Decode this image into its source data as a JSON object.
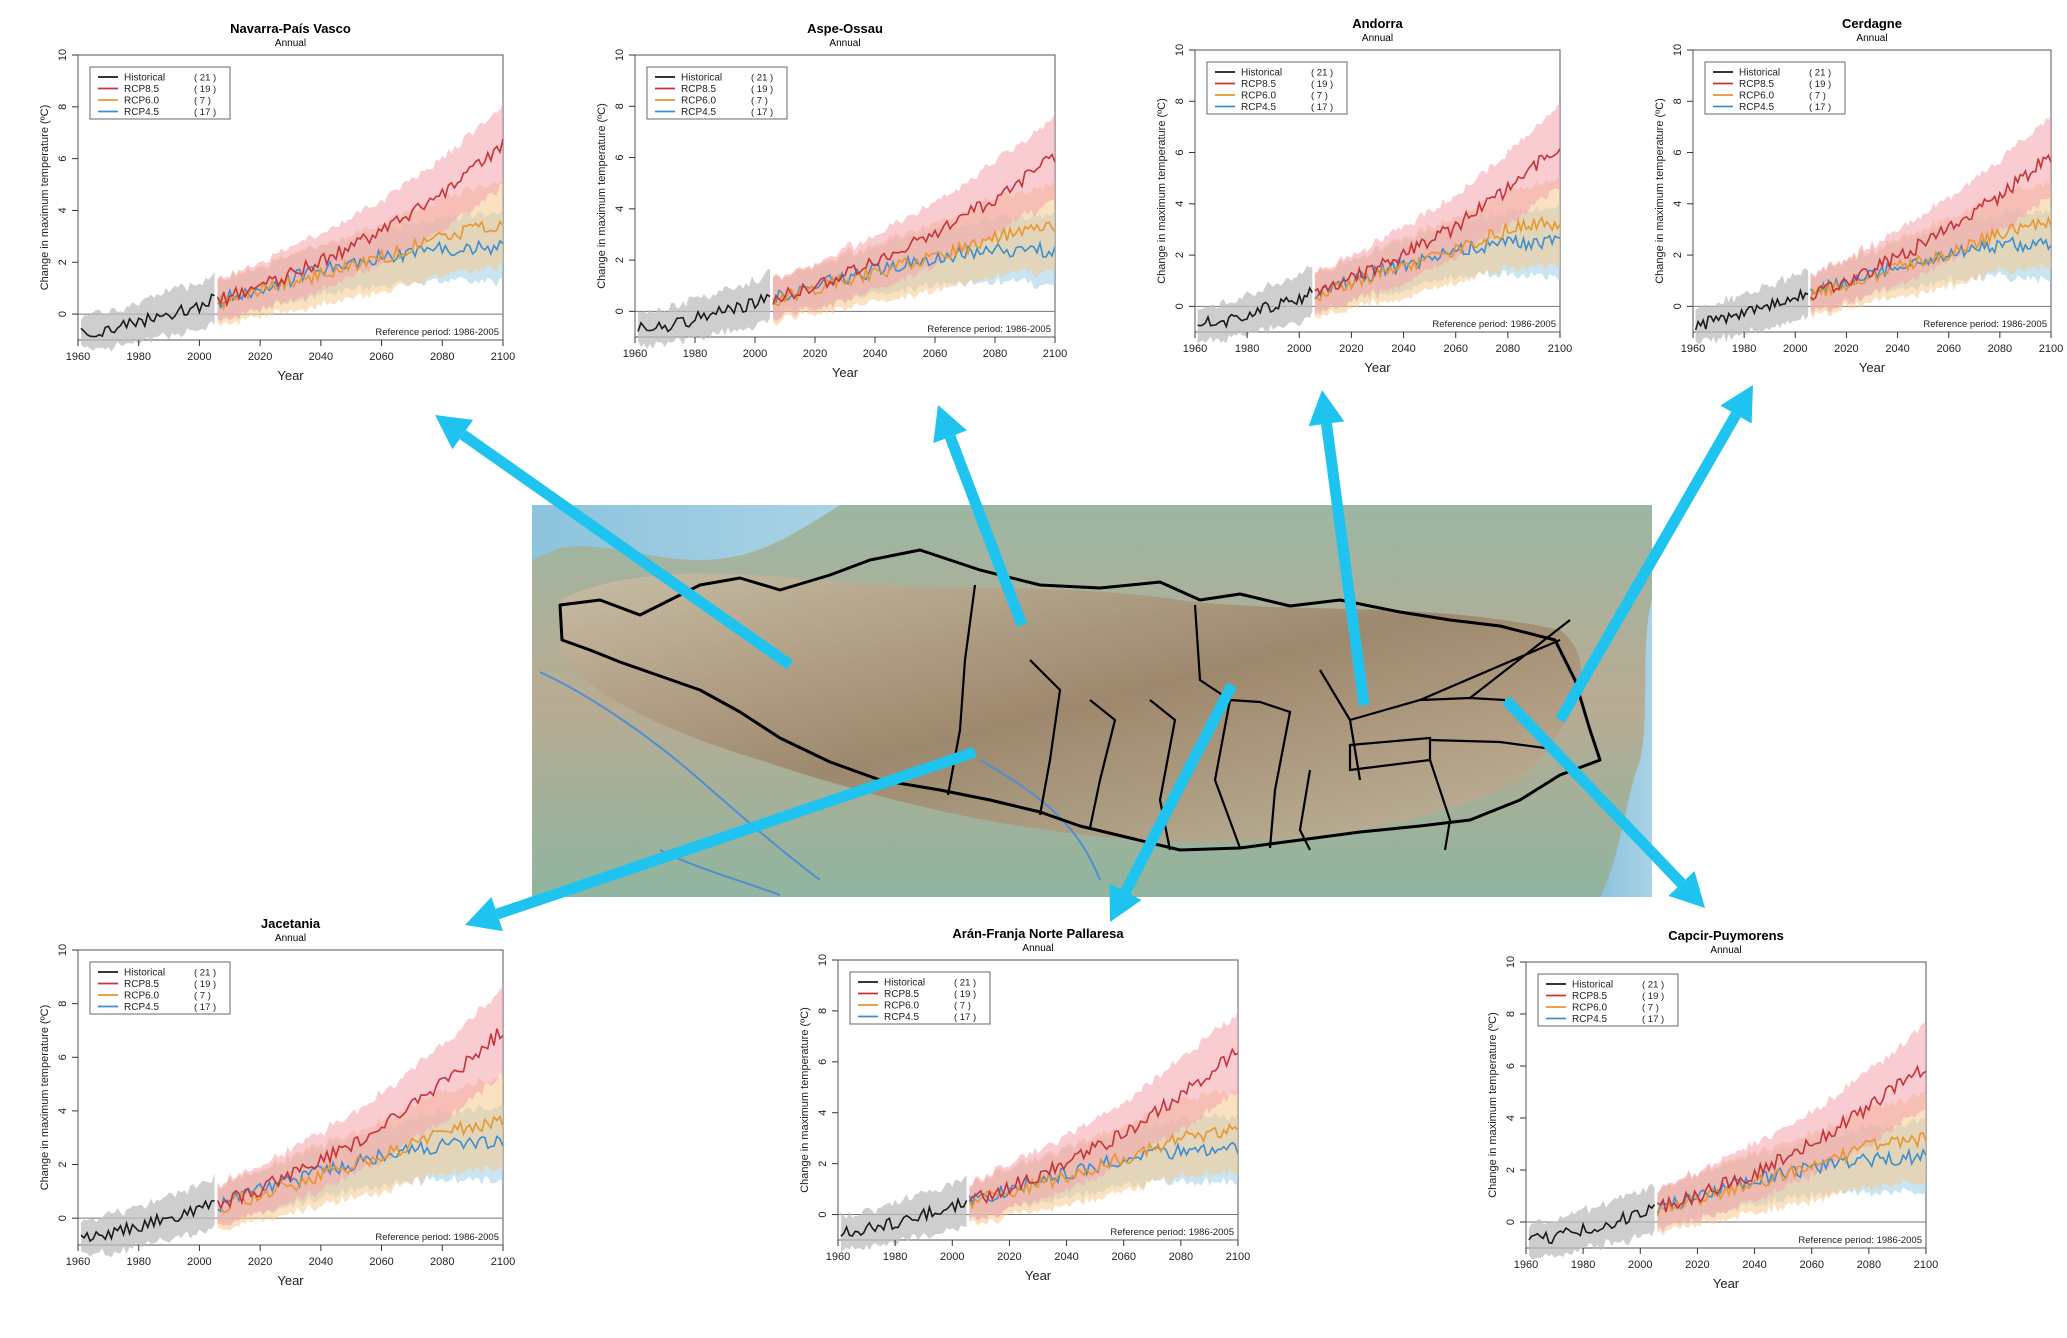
{
  "figure": {
    "subtitle": "Annual",
    "xlabel": "Year",
    "ylabel": "Change in maximum temperature (ºC)",
    "reference_note": "Reference period: 1986-2005",
    "colors": {
      "historical": "#1a1a1a",
      "rcp85": "#c8323a",
      "rcp60": "#e8962e",
      "rcp45": "#3b8fd0",
      "arrow": "#1ec4ef"
    },
    "legend": [
      {
        "key": "historical",
        "label": "Historical",
        "count": "( 21 )"
      },
      {
        "key": "rcp85",
        "label": "RCP8.5",
        "count": "( 19 )"
      },
      {
        "key": "rcp60",
        "label": "RCP6.0",
        "count": "( 7 )"
      },
      {
        "key": "rcp45",
        "label": "RCP4.5",
        "count": "( 17 )"
      }
    ]
  },
  "chart_data": [
    {
      "type": "line",
      "title": "Navarra-País Vasco",
      "subtitle": "Annual",
      "xlabel": "Year",
      "ylabel": "Change in maximum temperature (ºC)",
      "xlim": [
        1960,
        2100
      ],
      "ylim": [
        -1,
        10
      ],
      "xticks": [
        1960,
        1980,
        2000,
        2020,
        2040,
        2060,
        2080,
        2100
      ],
      "yticks": [
        0,
        2,
        4,
        6,
        8,
        10
      ],
      "reference_period": "Reference period: 1986-2005",
      "series": [
        {
          "name": "Historical",
          "x": [
            1961,
            1970,
            1980,
            1990,
            2000,
            2005
          ],
          "y": [
            -0.7,
            -0.6,
            -0.3,
            0.0,
            0.3,
            0.6
          ]
        },
        {
          "name": "RCP8.5",
          "x": [
            2006,
            2020,
            2040,
            2060,
            2080,
            2100
          ],
          "y": [
            0.5,
            1.1,
            2.0,
            3.2,
            4.6,
            6.5
          ]
        },
        {
          "name": "RCP6.0",
          "x": [
            2006,
            2020,
            2040,
            2060,
            2080,
            2100
          ],
          "y": [
            0.4,
            0.9,
            1.5,
            2.2,
            3.0,
            3.5
          ]
        },
        {
          "name": "RCP4.5",
          "x": [
            2006,
            2020,
            2040,
            2060,
            2080,
            2100
          ],
          "y": [
            0.5,
            1.0,
            1.7,
            2.2,
            2.5,
            2.6
          ]
        }
      ]
    },
    {
      "type": "line",
      "title": "Aspe-Ossau",
      "subtitle": "Annual",
      "xlabel": "Year",
      "ylabel": "Change in maximum temperature (ºC)",
      "xlim": [
        1960,
        2100
      ],
      "ylim": [
        -1,
        10
      ],
      "xticks": [
        1960,
        1980,
        2000,
        2020,
        2040,
        2060,
        2080,
        2100
      ],
      "yticks": [
        0,
        2,
        4,
        6,
        8,
        10
      ],
      "reference_period": "Reference period: 1986-2005",
      "series": [
        {
          "name": "Historical",
          "x": [
            1961,
            1970,
            1980,
            1990,
            2000,
            2005
          ],
          "y": [
            -0.7,
            -0.6,
            -0.3,
            0.0,
            0.3,
            0.6
          ]
        },
        {
          "name": "RCP8.5",
          "x": [
            2006,
            2020,
            2040,
            2060,
            2080,
            2100
          ],
          "y": [
            0.5,
            1.0,
            1.9,
            3.0,
            4.4,
            6.0
          ]
        },
        {
          "name": "RCP6.0",
          "x": [
            2006,
            2020,
            2040,
            2060,
            2080,
            2100
          ],
          "y": [
            0.4,
            0.9,
            1.5,
            2.1,
            2.9,
            3.3
          ]
        },
        {
          "name": "RCP4.5",
          "x": [
            2006,
            2020,
            2040,
            2060,
            2080,
            2100
          ],
          "y": [
            0.5,
            1.0,
            1.6,
            2.1,
            2.4,
            2.4
          ]
        }
      ]
    },
    {
      "type": "line",
      "title": "Andorra",
      "subtitle": "Annual",
      "xlabel": "Year",
      "ylabel": "Change in maximum temperature (ºC)",
      "xlim": [
        1960,
        2100
      ],
      "ylim": [
        -1,
        10
      ],
      "xticks": [
        1960,
        1980,
        2000,
        2020,
        2040,
        2060,
        2080,
        2100
      ],
      "yticks": [
        0,
        2,
        4,
        6,
        8,
        10
      ],
      "reference_period": "Reference period: 1986-2005",
      "series": [
        {
          "name": "Historical",
          "x": [
            1961,
            1970,
            1980,
            1990,
            2000,
            2005
          ],
          "y": [
            -0.7,
            -0.6,
            -0.3,
            0.0,
            0.3,
            0.6
          ]
        },
        {
          "name": "RCP8.5",
          "x": [
            2006,
            2020,
            2040,
            2060,
            2080,
            2100
          ],
          "y": [
            0.5,
            1.1,
            2.0,
            3.1,
            4.6,
            6.3
          ]
        },
        {
          "name": "RCP6.0",
          "x": [
            2006,
            2020,
            2040,
            2060,
            2080,
            2100
          ],
          "y": [
            0.4,
            0.9,
            1.5,
            2.2,
            3.0,
            3.3
          ]
        },
        {
          "name": "RCP4.5",
          "x": [
            2006,
            2020,
            2040,
            2060,
            2080,
            2100
          ],
          "y": [
            0.5,
            1.0,
            1.6,
            2.2,
            2.5,
            2.5
          ]
        }
      ]
    },
    {
      "type": "line",
      "title": "Cerdagne",
      "subtitle": "Annual",
      "xlabel": "Year",
      "ylabel": "Change in maximum temperature (ºC)",
      "xlim": [
        1960,
        2100
      ],
      "ylim": [
        -1,
        10
      ],
      "xticks": [
        1960,
        1980,
        2000,
        2020,
        2040,
        2060,
        2080,
        2100
      ],
      "yticks": [
        0,
        2,
        4,
        6,
        8,
        10
      ],
      "reference_period": "Reference period: 1986-2005",
      "series": [
        {
          "name": "Historical",
          "x": [
            1961,
            1970,
            1980,
            1990,
            2000,
            2005
          ],
          "y": [
            -0.7,
            -0.6,
            -0.3,
            0.0,
            0.3,
            0.6
          ]
        },
        {
          "name": "RCP8.5",
          "x": [
            2006,
            2020,
            2040,
            2060,
            2080,
            2100
          ],
          "y": [
            0.5,
            1.0,
            1.9,
            3.0,
            4.3,
            5.9
          ]
        },
        {
          "name": "RCP6.0",
          "x": [
            2006,
            2020,
            2040,
            2060,
            2080,
            2100
          ],
          "y": [
            0.4,
            0.9,
            1.5,
            2.1,
            2.9,
            3.2
          ]
        },
        {
          "name": "RCP4.5",
          "x": [
            2006,
            2020,
            2040,
            2060,
            2080,
            2100
          ],
          "y": [
            0.5,
            1.0,
            1.6,
            2.1,
            2.4,
            2.4
          ]
        }
      ]
    },
    {
      "type": "line",
      "title": "Jacetania",
      "subtitle": "Annual",
      "xlabel": "Year",
      "ylabel": "Change in maximum temperature (ºC)",
      "xlim": [
        1960,
        2100
      ],
      "ylim": [
        -1,
        10
      ],
      "xticks": [
        1960,
        1980,
        2000,
        2020,
        2040,
        2060,
        2080,
        2100
      ],
      "yticks": [
        0,
        2,
        4,
        6,
        8,
        10
      ],
      "reference_period": "Reference period: 1986-2005",
      "series": [
        {
          "name": "Historical",
          "x": [
            1961,
            1970,
            1980,
            1990,
            2000,
            2005
          ],
          "y": [
            -0.7,
            -0.6,
            -0.3,
            0.0,
            0.3,
            0.6
          ]
        },
        {
          "name": "RCP8.5",
          "x": [
            2006,
            2020,
            2040,
            2060,
            2080,
            2100
          ],
          "y": [
            0.5,
            1.1,
            2.1,
            3.4,
            5.0,
            7.0
          ]
        },
        {
          "name": "RCP6.0",
          "x": [
            2006,
            2020,
            2040,
            2060,
            2080,
            2100
          ],
          "y": [
            0.4,
            0.9,
            1.6,
            2.3,
            3.2,
            3.6
          ]
        },
        {
          "name": "RCP4.5",
          "x": [
            2006,
            2020,
            2040,
            2060,
            2080,
            2100
          ],
          "y": [
            0.5,
            1.0,
            1.7,
            2.3,
            2.7,
            2.8
          ]
        }
      ]
    },
    {
      "type": "line",
      "title": "Arán-Franja Norte Pallaresa",
      "subtitle": "Annual",
      "xlabel": "Year",
      "ylabel": "Change in maximum temperature (ºC)",
      "xlim": [
        1960,
        2100
      ],
      "ylim": [
        -1,
        10
      ],
      "xticks": [
        1960,
        1980,
        2000,
        2020,
        2040,
        2060,
        2080,
        2100
      ],
      "yticks": [
        0,
        2,
        4,
        6,
        8,
        10
      ],
      "reference_period": "Reference period: 1986-2005",
      "series": [
        {
          "name": "Historical",
          "x": [
            1961,
            1970,
            1980,
            1990,
            2000,
            2005
          ],
          "y": [
            -0.7,
            -0.6,
            -0.3,
            0.0,
            0.3,
            0.6
          ]
        },
        {
          "name": "RCP8.5",
          "x": [
            2006,
            2020,
            2040,
            2060,
            2080,
            2100
          ],
          "y": [
            0.5,
            1.1,
            2.0,
            3.2,
            4.7,
            6.4
          ]
        },
        {
          "name": "RCP6.0",
          "x": [
            2006,
            2020,
            2040,
            2060,
            2080,
            2100
          ],
          "y": [
            0.4,
            0.9,
            1.5,
            2.2,
            3.0,
            3.3
          ]
        },
        {
          "name": "RCP4.5",
          "x": [
            2006,
            2020,
            2040,
            2060,
            2080,
            2100
          ],
          "y": [
            0.5,
            1.0,
            1.6,
            2.2,
            2.5,
            2.6
          ]
        }
      ]
    },
    {
      "type": "line",
      "title": "Capcir-Puymorens",
      "subtitle": "Annual",
      "xlabel": "Year",
      "ylabel": "Change in maximum temperature (ºC)",
      "xlim": [
        1960,
        2100
      ],
      "ylim": [
        -1,
        10
      ],
      "xticks": [
        1960,
        1980,
        2000,
        2020,
        2040,
        2060,
        2080,
        2100
      ],
      "yticks": [
        0,
        2,
        4,
        6,
        8,
        10
      ],
      "reference_period": "Reference period: 1986-2005",
      "series": [
        {
          "name": "Historical",
          "x": [
            1961,
            1970,
            1980,
            1990,
            2000,
            2005
          ],
          "y": [
            -0.7,
            -0.6,
            -0.3,
            0.0,
            0.3,
            0.6
          ]
        },
        {
          "name": "RCP8.5",
          "x": [
            2006,
            2020,
            2040,
            2060,
            2080,
            2100
          ],
          "y": [
            0.5,
            1.0,
            1.9,
            3.0,
            4.4,
            6.0
          ]
        },
        {
          "name": "RCP6.0",
          "x": [
            2006,
            2020,
            2040,
            2060,
            2080,
            2100
          ],
          "y": [
            0.4,
            0.9,
            1.5,
            2.1,
            2.9,
            3.2
          ]
        },
        {
          "name": "RCP4.5",
          "x": [
            2006,
            2020,
            2040,
            2060,
            2080,
            2100
          ],
          "y": [
            0.5,
            1.0,
            1.6,
            2.1,
            2.4,
            2.5
          ]
        }
      ]
    }
  ]
}
